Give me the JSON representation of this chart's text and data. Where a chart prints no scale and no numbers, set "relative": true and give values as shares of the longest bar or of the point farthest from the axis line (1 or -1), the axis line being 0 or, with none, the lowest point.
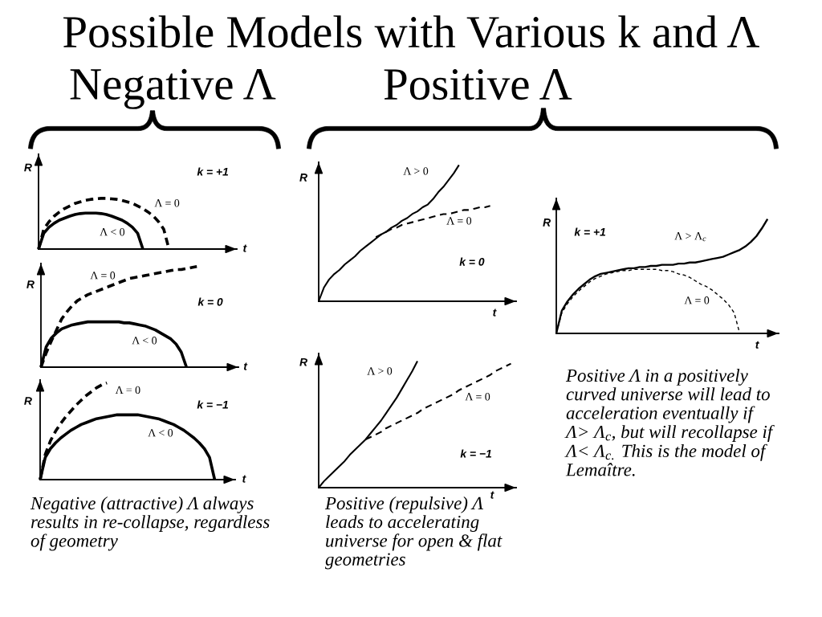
{
  "chart_data": [
    {
      "type": "other",
      "title": "Possible Models with Various k and Λ",
      "annotations": [
        "Negative Λ",
        "Positive Λ",
        "Negative (attractive) Λ always\nresults in re-collapse, regardless\nof geometry",
        "Positive (repulsive) Λ\nleads to accelerating\nuniverse for open & flat\ngeometries",
        "Positive Λ in a positively\ncurved universe will lead to\nacceleration eventually if\nΛ> Λ$_{c}$, but will recollapse if\nΛ< Λ$_{c.}$ This is the model of\nLemaître."
      ]
    },
    {
      "type": "line",
      "relative": true,
      "xlabel": "t",
      "ylabel": "R",
      "annotations": [
        "k = +1"
      ],
      "categories": [
        null,
        null,
        null,
        null,
        null,
        null,
        null,
        null,
        null,
        null,
        null,
        null,
        null,
        null,
        null,
        null,
        null,
        null,
        null,
        null,
        null,
        null,
        null,
        null,
        null,
        null,
        null,
        null,
        null,
        null,
        null,
        null,
        null,
        null,
        null,
        null,
        null,
        null,
        null
      ],
      "series": [
        {
          "name": "Λ < 0",
          "color": "#000000",
          "line_style": "solid",
          "values": [
            0,
            0.31,
            0.43,
            0.51,
            0.57,
            0.61,
            0.65,
            0.68,
            0.7,
            0.71,
            0.71,
            0.71,
            0.7,
            0.68,
            0.65,
            0.61,
            0.57,
            0.51,
            0.43,
            0.31,
            0,
            null,
            null,
            null,
            null,
            null,
            null,
            null,
            null,
            null,
            null,
            null,
            null,
            null,
            null,
            null,
            null,
            null,
            null
          ]
        },
        {
          "name": "Λ = 0",
          "color": "#000000",
          "line_style": "dashed",
          "values": [
            0,
            0.39,
            0.54,
            0.65,
            0.73,
            0.8,
            0.85,
            0.9,
            0.93,
            0.96,
            0.98,
            0.99,
            1.0,
            1.0,
            0.99,
            0.98,
            0.96,
            0.93,
            0.9,
            0.85,
            0.8,
            0.73,
            0.65,
            0.54,
            0.39,
            0,
            null,
            null,
            null,
            null,
            null,
            null,
            null,
            null,
            null,
            null,
            null,
            null,
            null
          ]
        }
      ]
    },
    {
      "type": "line",
      "relative": true,
      "xlabel": "t",
      "ylabel": "R",
      "annotations": [
        "k = 0"
      ],
      "categories": [
        null,
        null,
        null,
        null,
        null,
        null,
        null,
        null,
        null,
        null,
        null,
        null,
        null,
        null,
        null,
        null,
        null,
        null,
        null,
        null,
        null,
        null,
        null,
        null,
        null,
        null,
        null,
        null,
        null,
        null,
        null,
        null,
        null,
        null,
        null,
        null,
        null,
        null,
        null
      ],
      "series": [
        {
          "name": "Λ < 0",
          "color": "#000000",
          "line_style": "solid",
          "values": [
            0,
            0.2,
            0.29,
            0.34,
            0.38,
            0.4,
            0.42,
            0.43,
            0.44,
            0.45,
            0.45,
            0.45,
            0.45,
            0.45,
            0.45,
            0.45,
            0.44,
            0.44,
            0.43,
            0.42,
            0.41,
            0.39,
            0.37,
            0.34,
            0.31,
            0.28,
            0.23,
            0.15,
            0,
            null,
            null,
            null,
            null,
            null,
            null,
            null,
            null,
            null,
            null
          ]
        },
        {
          "name": "Λ = 0",
          "color": "#000000",
          "line_style": "dashed",
          "values": [
            0,
            0.14,
            0.26,
            0.37,
            0.48,
            0.55,
            0.61,
            0.66,
            0.69,
            0.72,
            0.74,
            0.76,
            0.78,
            0.8,
            0.82,
            0.84,
            0.86,
            0.88,
            0.89,
            0.9,
            0.91,
            0.92,
            0.93,
            0.94,
            0.95,
            0.96,
            0.97,
            0.97,
            0.98,
            0.99,
            1.0,
            null,
            null,
            null,
            null,
            null,
            null,
            null,
            null
          ]
        }
      ]
    },
    {
      "type": "line",
      "relative": true,
      "xlabel": "t",
      "ylabel": "R",
      "annotations": [
        "k = −1"
      ],
      "categories": [
        null,
        null,
        null,
        null,
        null,
        null,
        null,
        null,
        null,
        null,
        null,
        null,
        null,
        null,
        null,
        null,
        null,
        null,
        null,
        null,
        null,
        null,
        null,
        null,
        null,
        null,
        null,
        null,
        null,
        null,
        null,
        null,
        null,
        null,
        null,
        null,
        null,
        null,
        null
      ],
      "series": [
        {
          "name": "Λ < 0",
          "color": "#000000",
          "line_style": "solid",
          "values": [
            0,
            0.23,
            0.32,
            0.38,
            0.43,
            0.47,
            0.51,
            0.54,
            0.57,
            0.59,
            0.61,
            0.63,
            0.64,
            0.65,
            0.66,
            0.67,
            0.67,
            0.67,
            0.67,
            0.67,
            0.66,
            0.65,
            0.64,
            0.63,
            0.61,
            0.59,
            0.57,
            0.54,
            0.51,
            0.47,
            0.43,
            0.38,
            0.32,
            0.23,
            0,
            null,
            null,
            null,
            null
          ]
        },
        {
          "name": "Λ = 0",
          "color": "#000000",
          "line_style": "dashed",
          "values": [
            0,
            0.26,
            0.4,
            0.5,
            0.58,
            0.65,
            0.71,
            0.77,
            0.82,
            0.87,
            0.91,
            0.95,
            0.98,
            1.0,
            null,
            null,
            null,
            null,
            null,
            null,
            null,
            null,
            null,
            null,
            null,
            null,
            null,
            null,
            null,
            null,
            null,
            null,
            null,
            null,
            null,
            null,
            null,
            null,
            null
          ]
        }
      ]
    },
    {
      "type": "line",
      "relative": true,
      "xlabel": "t",
      "ylabel": "R",
      "annotations": [
        "k = 0"
      ],
      "categories": [
        null,
        null,
        null,
        null,
        null,
        null,
        null,
        null,
        null,
        null,
        null,
        null,
        null,
        null,
        null,
        null,
        null,
        null,
        null,
        null,
        null,
        null,
        null,
        null,
        null,
        null,
        null,
        null,
        null,
        null,
        null,
        null,
        null,
        null,
        null,
        null,
        null,
        null,
        null
      ],
      "series": [
        {
          "name": "Λ > 0",
          "color": "#000000",
          "line_style": "solid",
          "values": [
            0,
            0.1,
            0.16,
            0.2,
            0.23,
            0.27,
            0.3,
            0.33,
            0.37,
            0.4,
            0.43,
            0.46,
            0.49,
            0.51,
            0.54,
            0.56,
            0.59,
            0.61,
            0.64,
            0.66,
            0.69,
            0.71,
            0.75,
            0.8,
            0.84,
            0.89,
            0.94,
            1.0,
            null,
            null,
            null,
            null,
            null,
            null,
            null,
            null,
            null,
            null,
            null
          ]
        },
        {
          "name": "Λ = 0",
          "color": "#000000",
          "line_style": "dashed",
          "values": [
            null,
            null,
            null,
            null,
            null,
            null,
            null,
            null,
            null,
            null,
            null,
            0.47,
            0.49,
            0.51,
            0.53,
            0.54,
            0.56,
            0.57,
            0.58,
            0.59,
            0.6,
            0.61,
            0.62,
            0.63,
            0.64,
            0.64,
            0.65,
            0.66,
            0.67,
            0.67,
            0.68,
            0.69,
            0.69,
            0.7,
            null,
            null,
            null,
            null,
            null
          ]
        }
      ]
    },
    {
      "type": "line",
      "relative": true,
      "xlabel": "t",
      "ylabel": "R",
      "annotations": [
        "k = −1"
      ],
      "categories": [
        null,
        null,
        null,
        null,
        null,
        null,
        null,
        null,
        null,
        null,
        null,
        null,
        null,
        null,
        null,
        null,
        null,
        null,
        null,
        null,
        null,
        null,
        null,
        null,
        null,
        null,
        null,
        null,
        null,
        null,
        null,
        null,
        null,
        null,
        null,
        null,
        null,
        null,
        null
      ],
      "series": [
        {
          "name": "Λ > 0",
          "color": "#000000",
          "line_style": "solid",
          "values": [
            0,
            0.05,
            0.09,
            0.13,
            0.17,
            0.21,
            0.26,
            0.3,
            0.34,
            0.38,
            0.43,
            0.48,
            0.53,
            0.59,
            0.65,
            0.71,
            0.78,
            0.85,
            0.92,
            1.0,
            null,
            null,
            null,
            null,
            null,
            null,
            null,
            null,
            null,
            null,
            null,
            null,
            null,
            null,
            null,
            null,
            null,
            null,
            null
          ]
        },
        {
          "name": "Λ = 0",
          "color": "#000000",
          "line_style": "dashed",
          "values": [
            null,
            null,
            null,
            null,
            null,
            null,
            null,
            null,
            null,
            0.38,
            0.4,
            0.42,
            0.44,
            0.47,
            0.49,
            0.51,
            0.53,
            0.55,
            0.57,
            0.59,
            0.62,
            0.64,
            0.66,
            0.68,
            0.7,
            0.72,
            0.74,
            0.77,
            0.79,
            0.81,
            0.83,
            0.85,
            0.87,
            0.89,
            0.92,
            0.94,
            0.96,
            0.98,
            null
          ]
        }
      ]
    },
    {
      "type": "line",
      "relative": true,
      "xlabel": "t",
      "ylabel": "R",
      "annotations": [
        "k = +1"
      ],
      "categories": [
        null,
        null,
        null,
        null,
        null,
        null,
        null,
        null,
        null,
        null,
        null,
        null,
        null,
        null,
        null,
        null,
        null,
        null,
        null,
        null,
        null,
        null,
        null,
        null,
        null,
        null,
        null,
        null,
        null,
        null,
        null,
        null,
        null,
        null,
        null,
        null,
        null,
        null,
        null,
        null,
        null
      ],
      "series": [
        {
          "name": "Λ > Λ$_{c}$",
          "color": "#000000",
          "line_style": "solid",
          "values": [
            0,
            0.2,
            0.28,
            0.34,
            0.39,
            0.43,
            0.47,
            0.5,
            0.52,
            0.53,
            0.54,
            0.55,
            0.56,
            0.57,
            0.57,
            0.58,
            0.58,
            0.59,
            0.59,
            0.6,
            0.6,
            0.6,
            0.61,
            0.61,
            0.62,
            0.62,
            0.63,
            0.64,
            0.65,
            0.66,
            0.67,
            0.69,
            0.71,
            0.73,
            0.76,
            0.8,
            0.85,
            0.92,
            1.0,
            null,
            null
          ]
        },
        {
          "name": "Λ = 0",
          "color": "#000000",
          "line_style": "dashed",
          "values": [
            0,
            0.18,
            0.26,
            0.32,
            0.37,
            0.41,
            0.45,
            0.48,
            0.5,
            0.52,
            0.53,
            0.54,
            0.55,
            0.55,
            0.56,
            0.56,
            0.56,
            0.56,
            0.56,
            0.55,
            0.55,
            0.54,
            0.52,
            0.51,
            0.49,
            0.46,
            0.43,
            0.41,
            0.38,
            0.34,
            0.3,
            0.25,
            0.18,
            0,
            null,
            null,
            null,
            null,
            null,
            null,
            null
          ]
        }
      ]
    }
  ]
}
